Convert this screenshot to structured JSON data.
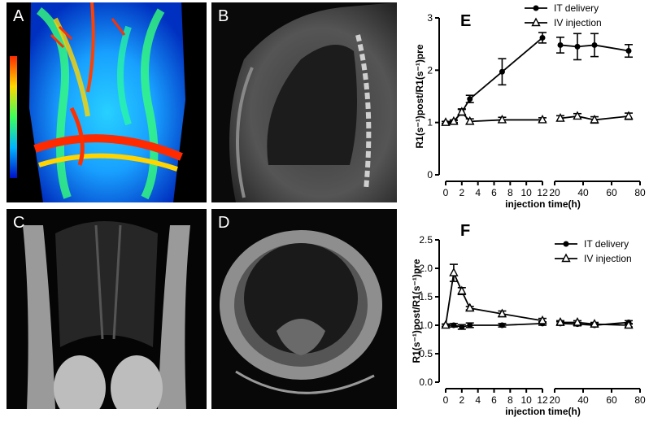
{
  "panels": {
    "A": {
      "label": "A"
    },
    "B": {
      "label": "B"
    },
    "C": {
      "label": "C"
    },
    "D": {
      "label": "D"
    }
  },
  "chart_data": [
    {
      "type": "line",
      "panel_label": "E",
      "xlabel": "injection time(h)",
      "ylabel": "R1(s⁻¹)post/R1(s⁻¹)pre",
      "ylim": [
        0,
        3
      ],
      "yticks": [
        0,
        1,
        2,
        3
      ],
      "xaxis_segments": [
        {
          "range": [
            0,
            12
          ],
          "ticks": [
            0,
            2,
            4,
            6,
            8,
            10,
            12
          ]
        },
        {
          "range": [
            20,
            80
          ],
          "ticks": [
            20,
            40,
            60,
            80
          ]
        }
      ],
      "legend_position": "top-right",
      "series": [
        {
          "name": "IT delivery",
          "marker": "circle",
          "x": [
            0,
            1,
            2,
            3,
            7,
            12,
            24,
            36,
            48,
            72
          ],
          "y": [
            1.0,
            1.02,
            1.2,
            1.45,
            1.97,
            2.62,
            2.48,
            2.45,
            2.48,
            2.37
          ],
          "err": [
            0.02,
            0.03,
            0.06,
            0.07,
            0.25,
            0.1,
            0.15,
            0.25,
            0.22,
            0.12
          ]
        },
        {
          "name": "IV injection",
          "marker": "triangle",
          "x": [
            0,
            1,
            2,
            3,
            7,
            12,
            24,
            36,
            48,
            72
          ],
          "y": [
            1.0,
            1.02,
            1.2,
            1.02,
            1.05,
            1.05,
            1.08,
            1.12,
            1.05,
            1.12
          ],
          "err": [
            0.02,
            0.02,
            0.05,
            0.05,
            0.05,
            0.04,
            0.05,
            0.05,
            0.06,
            0.06
          ]
        }
      ]
    },
    {
      "type": "line",
      "panel_label": "F",
      "xlabel": "injection time(h)",
      "ylabel": "R1(s⁻¹)post/R1(s⁻¹)pre",
      "ylim": [
        0,
        2.5
      ],
      "yticks": [
        0.0,
        0.5,
        1.0,
        1.5,
        2.0,
        2.5
      ],
      "xaxis_segments": [
        {
          "range": [
            0,
            12
          ],
          "ticks": [
            0,
            2,
            4,
            6,
            8,
            10,
            12
          ]
        },
        {
          "range": [
            20,
            80
          ],
          "ticks": [
            20,
            40,
            60,
            80
          ]
        }
      ],
      "legend_position": "top-right",
      "series": [
        {
          "name": "IT delivery",
          "marker": "circle",
          "x": [
            0,
            1,
            2,
            3,
            7,
            12,
            24,
            36,
            48,
            72
          ],
          "y": [
            1.0,
            1.0,
            0.97,
            1.0,
            1.0,
            1.03,
            1.03,
            1.02,
            1.0,
            1.05
          ],
          "err": [
            0.02,
            0.03,
            0.04,
            0.04,
            0.03,
            0.03,
            0.03,
            0.03,
            0.03,
            0.03
          ]
        },
        {
          "name": "IV injection",
          "marker": "triangle",
          "x": [
            0,
            1,
            2,
            3,
            7,
            12,
            24,
            36,
            48,
            72
          ],
          "y": [
            1.0,
            1.92,
            1.6,
            1.3,
            1.2,
            1.08,
            1.05,
            1.05,
            1.02,
            1.0
          ],
          "err": [
            0.02,
            0.15,
            0.06,
            0.03,
            0.05,
            0.04,
            0.03,
            0.03,
            0.03,
            0.03
          ]
        }
      ]
    }
  ]
}
